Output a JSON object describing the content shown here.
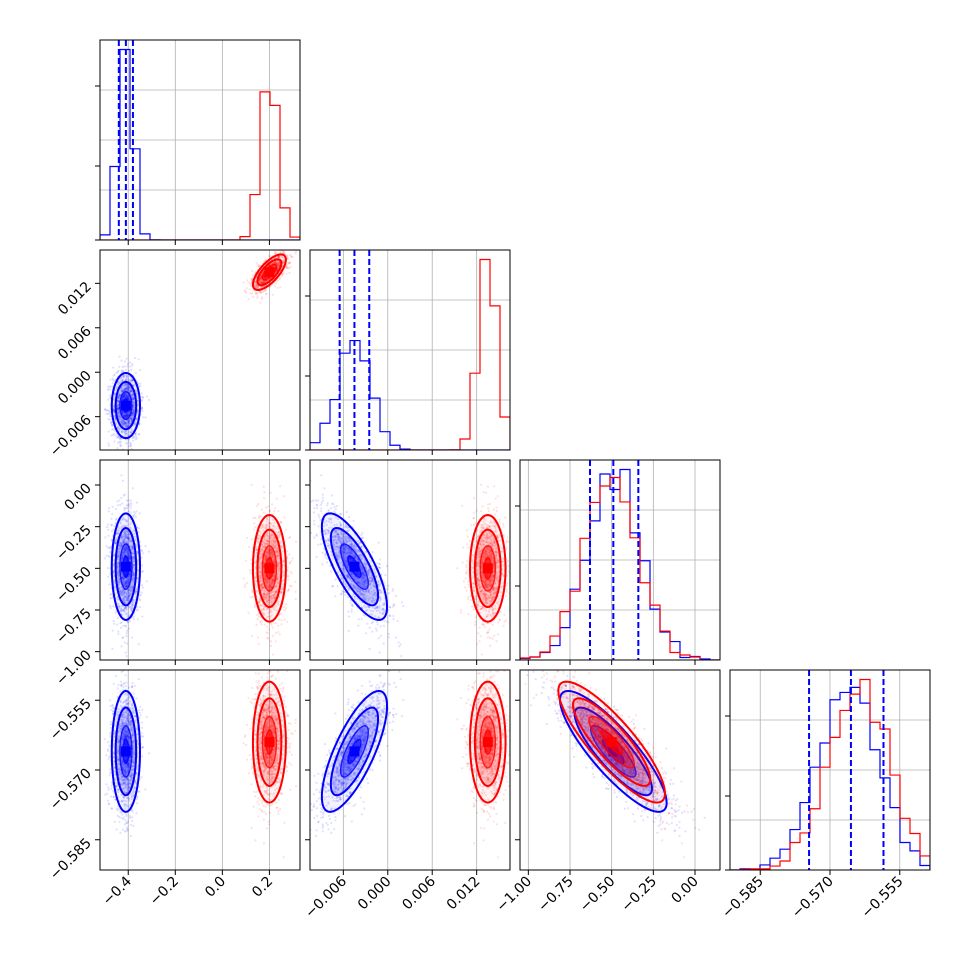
{
  "chart_data": {
    "type": "corner",
    "parameters": 4,
    "grid": true,
    "colors": {
      "series_a": "#0000ff",
      "series_b": "#ff0000"
    },
    "series": [
      {
        "color": "#0000ff",
        "mean": [
          -0.41,
          -0.0045,
          -0.49,
          -0.566
        ],
        "std": [
          0.03,
          0.0022,
          0.16,
          0.0065
        ],
        "correlation": [
          [
            1,
            0,
            0,
            0
          ],
          [
            0,
            1,
            -0.75,
            0.75
          ],
          [
            0,
            -0.75,
            1,
            -0.85
          ],
          [
            0,
            0.75,
            -0.85,
            1
          ]
        ],
        "quantiles": [
          [
            -0.44,
            -0.41,
            -0.38
          ],
          [
            -0.0065,
            -0.0045,
            -0.0025
          ],
          [
            -0.63,
            -0.49,
            -0.34
          ],
          [
            -0.5745,
            -0.5655,
            -0.5585
          ]
        ]
      },
      {
        "color": "#ff0000",
        "mean": [
          0.2,
          0.0135,
          -0.5,
          -0.564
        ],
        "std": [
          0.035,
          0.0012,
          0.16,
          0.0065
        ],
        "correlation": [
          [
            1,
            0.7,
            0,
            0
          ],
          [
            0.7,
            1,
            0,
            0
          ],
          [
            0,
            0,
            1,
            -0.85
          ],
          [
            0,
            0,
            -0.85,
            1
          ]
        ]
      }
    ],
    "axes": [
      {
        "range": [
          -0.52,
          0.33
        ],
        "ticks": [
          -0.4,
          -0.2,
          0.0,
          0.2
        ],
        "tick_labels": [
          "−0.4",
          "−0.2",
          "0.0",
          "0.2"
        ]
      },
      {
        "range": [
          -0.0105,
          0.0165
        ],
        "ticks": [
          -0.006,
          0.0,
          0.006,
          0.012
        ],
        "tick_labels": [
          "−0.006",
          "0.000",
          "0.006",
          "0.012"
        ]
      },
      {
        "range": [
          -1.05,
          0.15
        ],
        "ticks": [
          -1.0,
          -0.75,
          -0.5,
          -0.25,
          0.0
        ],
        "tick_labels": [
          "−1.00",
          "−0.75",
          "−0.50",
          "−0.25",
          "0.00"
        ]
      },
      {
        "range": [
          -0.5915,
          -0.5485
        ],
        "ticks": [
          -0.585,
          -0.57,
          -0.555
        ],
        "tick_labels": [
          "−0.585",
          "−0.570",
          "−0.555"
        ]
      }
    ]
  }
}
